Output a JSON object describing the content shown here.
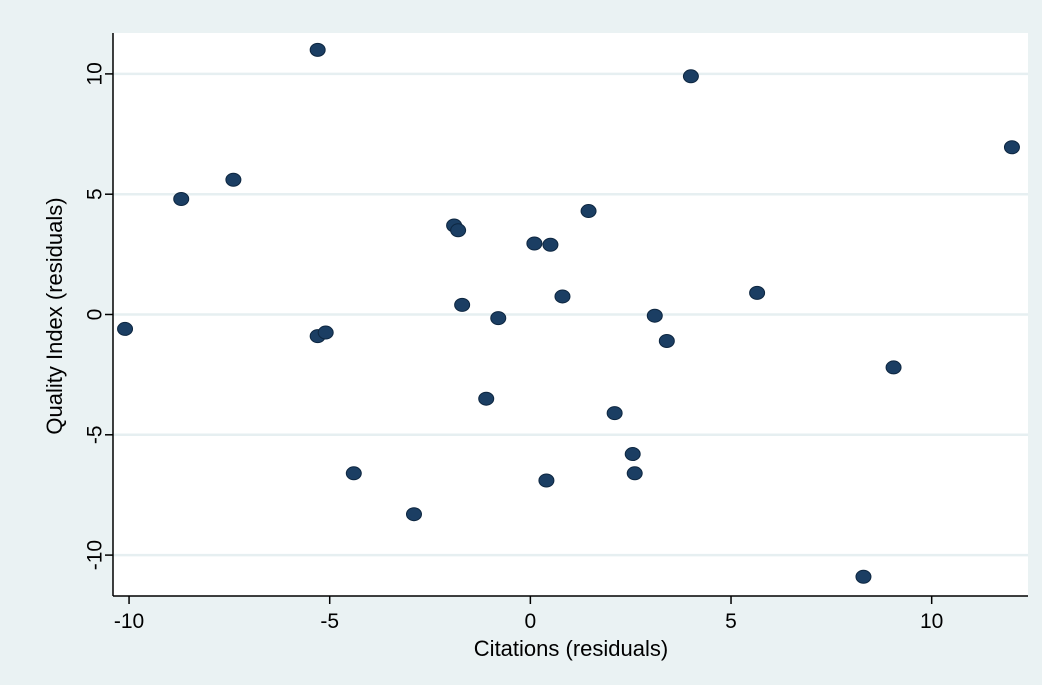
{
  "chart_data": {
    "type": "scatter",
    "title": "",
    "xlabel": "Citations (residuals)",
    "ylabel": "Quality Index (residuals)",
    "xlim": [
      -10.4,
      12.4
    ],
    "ylim": [
      -11.7,
      11.7
    ],
    "xticks": [
      -10,
      -5,
      0,
      5,
      10
    ],
    "yticks": [
      -10,
      -5,
      0,
      5,
      10
    ],
    "xtick_labels": [
      "-10",
      "-5",
      "0",
      "5",
      "10"
    ],
    "ytick_labels": [
      "-10",
      "-5",
      "0",
      "5",
      "10"
    ],
    "grid": "horizontal",
    "legend": "none",
    "colors": {
      "outer_background": "#eaf2f3",
      "plot_background": "#ffffff",
      "gridline": "#e6eff1",
      "marker": "#1b3e63",
      "marker_edge": "#0d2640",
      "axis": "#000000"
    },
    "points": [
      {
        "x": -10.1,
        "y": -0.6
      },
      {
        "x": -8.7,
        "y": 4.8
      },
      {
        "x": -7.4,
        "y": 5.6
      },
      {
        "x": -5.3,
        "y": 11.0
      },
      {
        "x": -5.3,
        "y": -0.9
      },
      {
        "x": -5.1,
        "y": -0.75
      },
      {
        "x": -4.4,
        "y": -6.6
      },
      {
        "x": -2.9,
        "y": -8.3
      },
      {
        "x": -1.9,
        "y": 3.7
      },
      {
        "x": -1.8,
        "y": 3.5
      },
      {
        "x": -1.7,
        "y": 0.4
      },
      {
        "x": -1.1,
        "y": -3.5
      },
      {
        "x": -0.8,
        "y": -0.15
      },
      {
        "x": 0.1,
        "y": 2.95
      },
      {
        "x": 0.4,
        "y": -6.9
      },
      {
        "x": 0.5,
        "y": 2.9
      },
      {
        "x": 0.8,
        "y": 0.75
      },
      {
        "x": 1.45,
        "y": 4.3
      },
      {
        "x": 2.1,
        "y": -4.1
      },
      {
        "x": 2.55,
        "y": -5.8
      },
      {
        "x": 2.6,
        "y": -6.6
      },
      {
        "x": 3.1,
        "y": -0.05
      },
      {
        "x": 3.4,
        "y": -1.1
      },
      {
        "x": 4.0,
        "y": 9.9
      },
      {
        "x": 5.65,
        "y": 0.9
      },
      {
        "x": 8.3,
        "y": -10.9
      },
      {
        "x": 9.05,
        "y": -2.2
      },
      {
        "x": 12.0,
        "y": 6.95
      }
    ]
  }
}
